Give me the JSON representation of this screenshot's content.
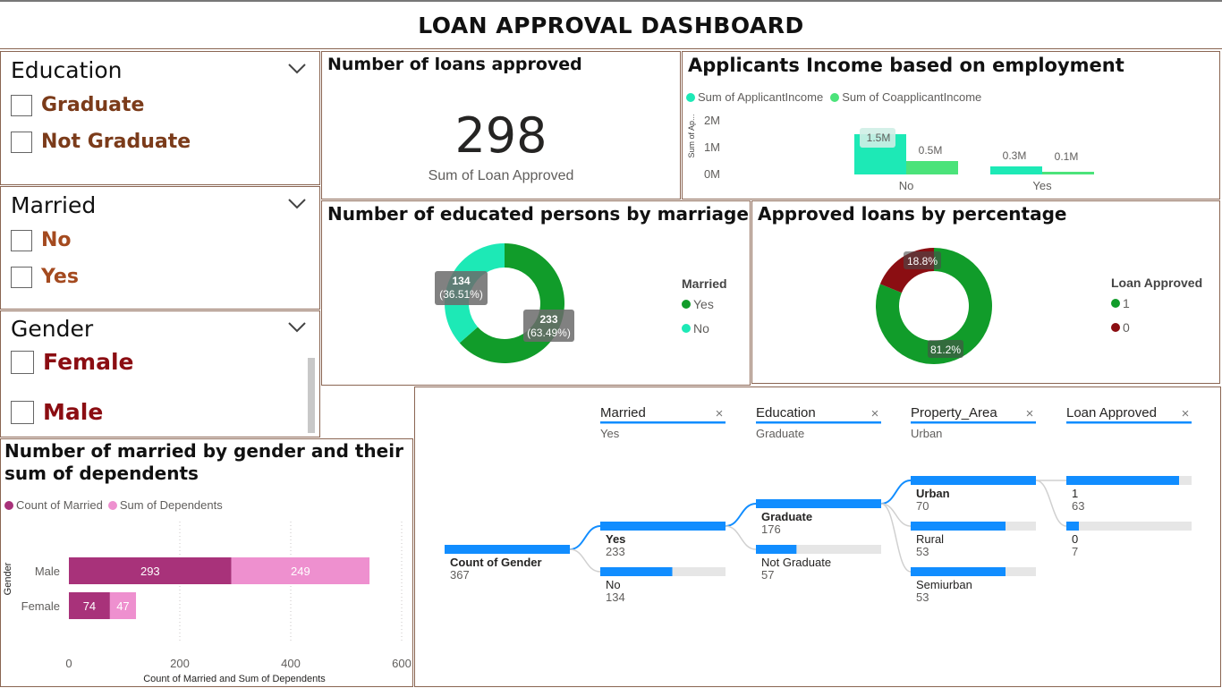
{
  "dashboard_title": "LOAN APPROVAL DASHBOARD",
  "colors": {
    "border": "#8a6552",
    "teal": "#1de9b6",
    "light_green": "#4be37a",
    "green": "#119c2a",
    "dark_red": "#8b0e12",
    "magenta": "#a8327a",
    "pink": "#ee90cf",
    "blue": "#118dff",
    "brown_text": "#7b3b1a",
    "orange_text": "#a44a1f",
    "red_text": "#8b0d12"
  },
  "slicers": {
    "education": {
      "title": "Education",
      "options": [
        "Graduate",
        "Not Graduate"
      ]
    },
    "married": {
      "title": "Married",
      "options": [
        "No",
        "Yes"
      ]
    },
    "gender": {
      "title": "Gender",
      "options": [
        "Female",
        "Male"
      ]
    }
  },
  "kpi": {
    "title": "Number of loans approved",
    "value": "298",
    "label": "Sum of Loan Approved"
  },
  "chart_data": [
    {
      "id": "income",
      "type": "bar",
      "title": "Applicants Income based on employment",
      "ylabel": "Sum of Ap...",
      "yticks": [
        "2M",
        "1M",
        "0M"
      ],
      "ylim": [
        0,
        2000000
      ],
      "categories": [
        "No",
        "Yes"
      ],
      "series": [
        {
          "name": "Sum of ApplicantIncome",
          "values": [
            1500000,
            300000
          ],
          "labels": [
            "1.5M",
            "0.3M"
          ],
          "color": "#1de9b6"
        },
        {
          "name": "Sum of CoapplicantIncome",
          "values": [
            500000,
            100000
          ],
          "labels": [
            "0.5M",
            "0.1M"
          ],
          "color": "#4be37a"
        }
      ]
    },
    {
      "id": "marriage",
      "type": "pie",
      "title": "Number of educated persons by marriage",
      "legend_title": "Married",
      "slices": [
        {
          "name": "Yes",
          "value": 233,
          "label": "233",
          "pct": "(63.49%)",
          "color": "#119c2a"
        },
        {
          "name": "No",
          "value": 134,
          "label": "134",
          "pct": "(36.51%)",
          "color": "#1de9b6"
        }
      ]
    },
    {
      "id": "approval",
      "type": "pie",
      "title": "Approved loans by percentage",
      "legend_title": "Loan Approved",
      "slices": [
        {
          "name": "1",
          "value": 81.2,
          "label": "81.2%",
          "color": "#119c2a"
        },
        {
          "name": "0",
          "value": 18.8,
          "label": "18.8%",
          "color": "#8b0e12"
        }
      ]
    },
    {
      "id": "gender",
      "type": "bar",
      "orientation": "horizontal",
      "stacked": true,
      "title": "Number of married by gender and their sum of dependents",
      "xlabel": "Count of Married and Sum of Dependents",
      "ylabel": "Gender",
      "xlim": [
        0,
        600
      ],
      "xticks": [
        0,
        200,
        400,
        600
      ],
      "categories": [
        "Male",
        "Female"
      ],
      "series": [
        {
          "name": "Count of Married",
          "values": [
            293,
            74
          ],
          "color": "#a8327a"
        },
        {
          "name": "Sum of Dependents",
          "values": [
            249,
            47
          ],
          "color": "#ee90cf"
        }
      ]
    }
  ],
  "tree": {
    "headers": [
      {
        "title": "Married",
        "value": "Yes"
      },
      {
        "title": "Education",
        "value": "Graduate"
      },
      {
        "title": "Property_Area",
        "value": "Urban"
      },
      {
        "title": "Loan Approved",
        "value": ""
      }
    ],
    "root": {
      "name": "Count of Gender",
      "value": 367
    },
    "levels": [
      {
        "max": 233,
        "nodes": [
          {
            "name": "Yes",
            "value": 233,
            "selected": true
          },
          {
            "name": "No",
            "value": 134
          }
        ]
      },
      {
        "max": 176,
        "nodes": [
          {
            "name": "Graduate",
            "value": 176,
            "selected": true
          },
          {
            "name": "Not Graduate",
            "value": 57
          }
        ]
      },
      {
        "max": 70,
        "nodes": [
          {
            "name": "Urban",
            "value": 70,
            "selected": true
          },
          {
            "name": "Rural",
            "value": 53
          },
          {
            "name": "Semiurban",
            "value": 53
          }
        ]
      },
      {
        "max": 70,
        "nodes": [
          {
            "name": "1",
            "value": 63
          },
          {
            "name": "0",
            "value": 7
          }
        ]
      }
    ]
  }
}
